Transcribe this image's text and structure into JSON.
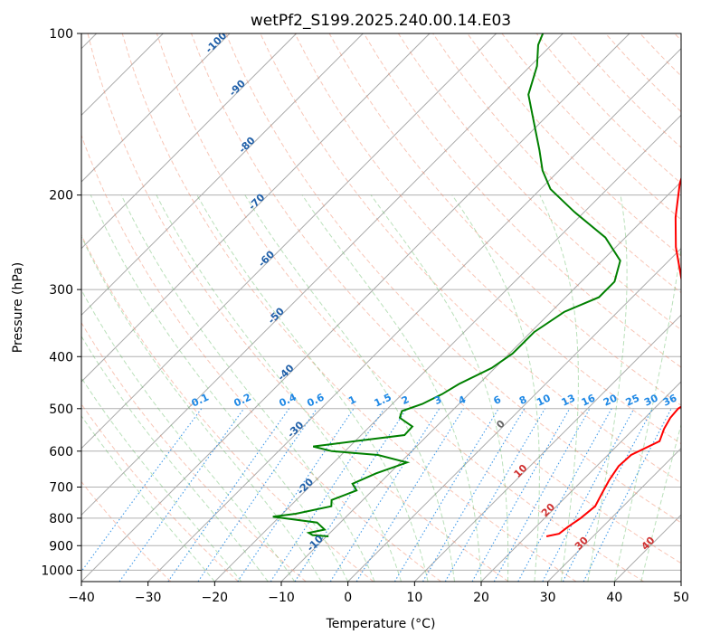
{
  "title": "wetPf2_S199.2025.240.00.14.E03",
  "chart_data": {
    "type": "line",
    "subtype": "skew-t log-p diagram",
    "title": "wetPf2_S199.2025.240.00.14.E03",
    "xlabel": "Temperature (°C)",
    "ylabel": "Pressure (hPa)",
    "xlim": [
      -40,
      50
    ],
    "ylim": [
      1050,
      100
    ],
    "y_scale": "log (inverted)",
    "x_ticks": [
      -40,
      -30,
      -20,
      -10,
      0,
      10,
      20,
      30,
      40,
      50
    ],
    "x_tick_labels": [
      "−40",
      "−30",
      "−20",
      "−10",
      "0",
      "10",
      "20",
      "30",
      "40",
      "50"
    ],
    "y_ticks": [
      100,
      200,
      300,
      400,
      500,
      600,
      700,
      800,
      900,
      1000
    ],
    "y_tick_labels": [
      "100",
      "200",
      "300",
      "400",
      "500",
      "600",
      "700",
      "800",
      "900",
      "1000"
    ],
    "grid": true,
    "series": [
      {
        "id": "temperature",
        "color": "#ff0000",
        "points": [
          {
            "p": 865,
            "t": 23.0
          },
          {
            "p": 855,
            "t": 24.5
          },
          {
            "p": 830,
            "t": 24.8
          },
          {
            "p": 800,
            "t": 25.4
          },
          {
            "p": 760,
            "t": 25.8
          },
          {
            "p": 720,
            "t": 24.9
          },
          {
            "p": 680,
            "t": 24.0
          },
          {
            "p": 640,
            "t": 23.3
          },
          {
            "p": 610,
            "t": 23.5
          },
          {
            "p": 575,
            "t": 25.7
          },
          {
            "p": 545,
            "t": 24.5
          },
          {
            "p": 520,
            "t": 23.8
          },
          {
            "p": 500,
            "t": 23.6
          },
          {
            "p": 470,
            "t": 24.8
          },
          {
            "p": 450,
            "t": 23.3
          },
          {
            "p": 400,
            "t": 19.5
          },
          {
            "p": 350,
            "t": 13.5
          },
          {
            "p": 300,
            "t": 6.5
          },
          {
            "p": 250,
            "t": -1.0
          },
          {
            "p": 220,
            "t": -5.5
          },
          {
            "p": 190,
            "t": -10.0
          },
          {
            "p": 160,
            "t": -14.0
          },
          {
            "p": 140,
            "t": -18.0
          },
          {
            "p": 125,
            "t": -23.0
          },
          {
            "p": 115,
            "t": -27.0
          },
          {
            "p": 105,
            "t": -27.5
          },
          {
            "p": 100,
            "t": -27.0
          }
        ]
      },
      {
        "id": "dewpoint",
        "color": "#008000",
        "points": [
          {
            "p": 865,
            "t": -9.7
          },
          {
            "p": 860,
            "t": -12.3
          },
          {
            "p": 852,
            "t": -13.2
          },
          {
            "p": 840,
            "t": -11.3
          },
          {
            "p": 815,
            "t": -13.5
          },
          {
            "p": 795,
            "t": -21.0
          },
          {
            "p": 785,
            "t": -18.0
          },
          {
            "p": 760,
            "t": -13.8
          },
          {
            "p": 740,
            "t": -14.7
          },
          {
            "p": 710,
            "t": -12.4
          },
          {
            "p": 690,
            "t": -14.0
          },
          {
            "p": 660,
            "t": -12.0
          },
          {
            "p": 630,
            "t": -9.0
          },
          {
            "p": 610,
            "t": -14.5
          },
          {
            "p": 600,
            "t": -22.0
          },
          {
            "p": 588,
            "t": -25.5
          },
          {
            "p": 575,
            "t": -20.0
          },
          {
            "p": 560,
            "t": -13.5
          },
          {
            "p": 540,
            "t": -13.6
          },
          {
            "p": 520,
            "t": -16.8
          },
          {
            "p": 505,
            "t": -17.5
          },
          {
            "p": 490,
            "t": -15.5
          },
          {
            "p": 470,
            "t": -14.0
          },
          {
            "p": 450,
            "t": -13.0
          },
          {
            "p": 420,
            "t": -10.5
          },
          {
            "p": 395,
            "t": -9.5
          },
          {
            "p": 360,
            "t": -9.5
          },
          {
            "p": 330,
            "t": -8.0
          },
          {
            "p": 310,
            "t": -5.0
          },
          {
            "p": 290,
            "t": -5.0
          },
          {
            "p": 265,
            "t": -7.3
          },
          {
            "p": 240,
            "t": -13.0
          },
          {
            "p": 215,
            "t": -21.5
          },
          {
            "p": 195,
            "t": -28.5
          },
          {
            "p": 180,
            "t": -32.5
          },
          {
            "p": 165,
            "t": -36.0
          },
          {
            "p": 150,
            "t": -40.0
          },
          {
            "p": 130,
            "t": -46.0
          },
          {
            "p": 115,
            "t": -49.0
          },
          {
            "p": 105,
            "t": -52.0
          },
          {
            "p": 100,
            "t": -53.0
          }
        ]
      }
    ],
    "isotherm_labels": [
      "-100",
      "-90",
      "-80",
      "-70",
      "-60",
      "-50",
      "-40",
      "-30",
      "-20",
      "-10",
      "0",
      "10",
      "20",
      "30",
      "40"
    ],
    "mixing_ratio_labels": [
      "0.1",
      "0.2",
      "0.4",
      "0.6",
      "1",
      "1.5",
      "2",
      "3",
      "4",
      "6",
      "8",
      "10",
      "13",
      "16",
      "20",
      "25",
      "30",
      "36"
    ],
    "colors": {
      "temperature": "#ff0000",
      "dewpoint": "#008000",
      "isotherm": "#aaaaaa",
      "dry_adiabat": "#f08060",
      "moist_adiabat": "#66bb66",
      "mixing_ratio": "#1e88e5",
      "cold_label": "#1f5fa8",
      "warm_label": "#d03030",
      "zero_label": "#666666",
      "mixing_label": "#1e88e5"
    }
  }
}
